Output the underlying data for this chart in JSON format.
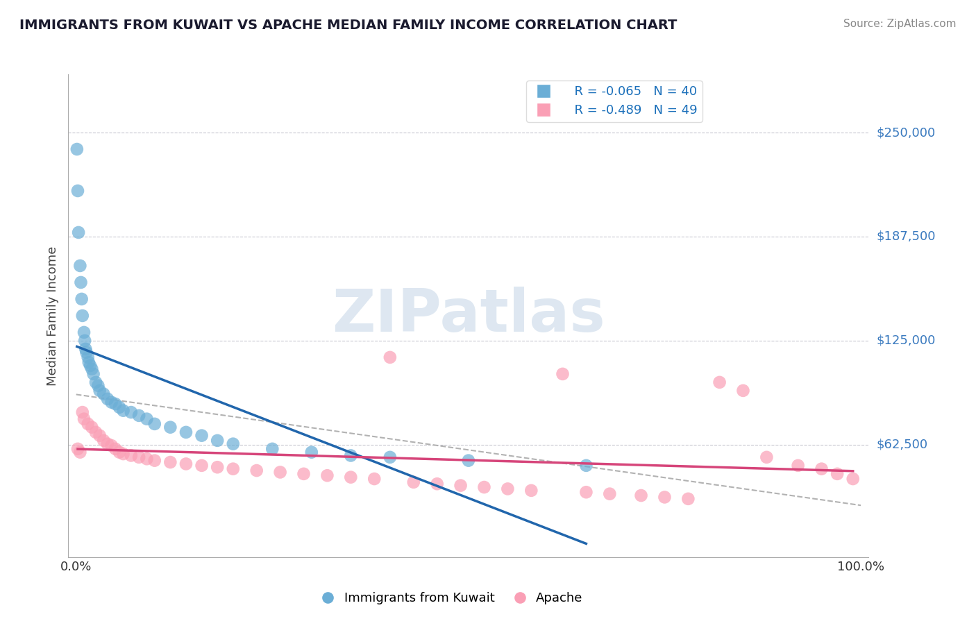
{
  "title": "IMMIGRANTS FROM KUWAIT VS APACHE MEDIAN FAMILY INCOME CORRELATION CHART",
  "source": "Source: ZipAtlas.com",
  "ylabel": "Median Family Income",
  "legend_labels": [
    "Immigrants from Kuwait",
    "Apache"
  ],
  "legend_r": [
    "R = -0.065",
    "N = 40",
    "R = -0.489",
    "N = 49"
  ],
  "y_tick_labels": [
    "$250,000",
    "$187,500",
    "$125,000",
    "$62,500"
  ],
  "y_tick_values": [
    250000,
    187500,
    125000,
    62500
  ],
  "blue_color": "#6baed6",
  "pink_color": "#fa9fb5",
  "blue_line_color": "#2166ac",
  "pink_line_color": "#d6457a",
  "legend_r_color": "#1a6fba",
  "title_color": "#1a1a2e",
  "ytick_color": "#3a7abf",
  "background_color": "#ffffff",
  "grid_color": "#c8c8d0",
  "watermark_color": "#c8d8e8",
  "blue_x": [
    0.1,
    0.2,
    0.3,
    0.5,
    0.6,
    0.7,
    0.8,
    1.0,
    1.1,
    1.2,
    1.3,
    1.5,
    1.6,
    1.8,
    2.0,
    2.2,
    2.5,
    2.8,
    3.0,
    3.5,
    4.0,
    4.5,
    5.0,
    5.5,
    6.0,
    7.0,
    8.0,
    9.0,
    10.0,
    12.0,
    14.0,
    16.0,
    18.0,
    20.0,
    25.0,
    30.0,
    35.0,
    40.0,
    50.0,
    65.0
  ],
  "blue_y": [
    240000,
    215000,
    190000,
    170000,
    160000,
    150000,
    140000,
    130000,
    125000,
    120000,
    118000,
    115000,
    112000,
    110000,
    108000,
    105000,
    100000,
    98000,
    95000,
    93000,
    90000,
    88000,
    87000,
    85000,
    83000,
    82000,
    80000,
    78000,
    75000,
    73000,
    70000,
    68000,
    65000,
    63000,
    60000,
    58000,
    56000,
    55000,
    53000,
    50000
  ],
  "pink_x": [
    0.2,
    0.5,
    0.8,
    1.0,
    1.5,
    2.0,
    2.5,
    3.0,
    3.5,
    4.0,
    4.5,
    5.0,
    5.5,
    6.0,
    7.0,
    8.0,
    9.0,
    10.0,
    12.0,
    14.0,
    16.0,
    18.0,
    20.0,
    23.0,
    26.0,
    29.0,
    32.0,
    35.0,
    38.0,
    40.0,
    43.0,
    46.0,
    49.0,
    52.0,
    55.0,
    58.0,
    62.0,
    65.0,
    68.0,
    72.0,
    75.0,
    78.0,
    82.0,
    85.0,
    88.0,
    92.0,
    95.0,
    97.0,
    99.0
  ],
  "pink_y": [
    60000,
    58000,
    82000,
    78000,
    75000,
    73000,
    70000,
    68000,
    65000,
    63000,
    62000,
    60000,
    58000,
    57000,
    56000,
    55000,
    54000,
    53000,
    52000,
    51000,
    50000,
    49000,
    48000,
    47000,
    46000,
    45000,
    44000,
    43000,
    42000,
    115000,
    40000,
    39000,
    38000,
    37000,
    36000,
    35000,
    105000,
    34000,
    33000,
    32000,
    31000,
    30000,
    100000,
    95000,
    55000,
    50000,
    48000,
    45000,
    42000
  ]
}
